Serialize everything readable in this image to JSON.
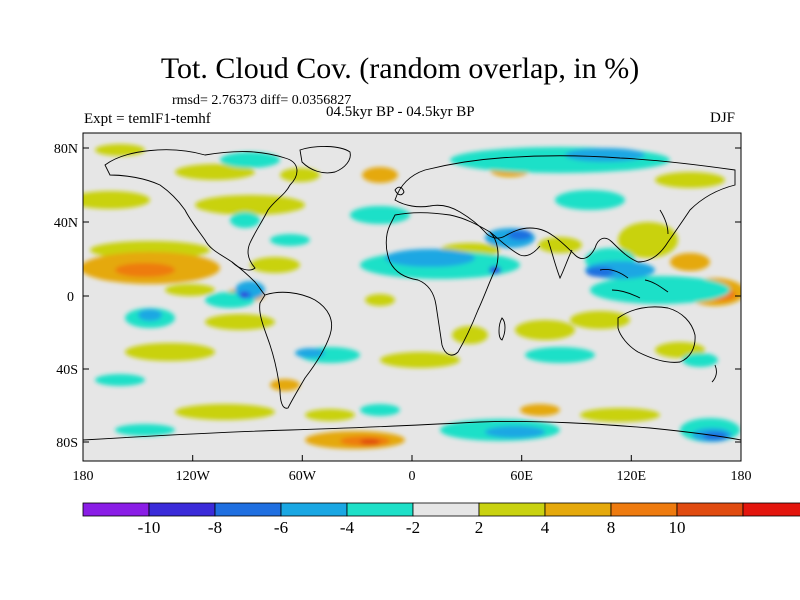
{
  "title": "Tot. Cloud Cov. (random overlap, in %)",
  "stats": "rmsd= 2.76373 diff= 0.0356827",
  "experiment": "Expt = temlF1-temhf",
  "period": "04.5kyr BP - 04.5kyr BP",
  "season": "DJF",
  "axes": {
    "lon_ticks": [
      "180",
      "120W",
      "60W",
      "0",
      "60E",
      "120E",
      "180"
    ],
    "lat_ticks": [
      "80N",
      "40N",
      "0",
      "40S",
      "80S"
    ]
  },
  "colorbar": {
    "colors": [
      "#8a1de6",
      "#3b2bd9",
      "#1f6fe0",
      "#1aa7e3",
      "#1ee0c8",
      "#e6e6e6",
      "#c9d210",
      "#e5a90c",
      "#ee7b0f",
      "#e04b10",
      "#e3150d"
    ],
    "labels": [
      "-10",
      "-8",
      "-6",
      "-4",
      "-2",
      "2",
      "4",
      "8",
      "10"
    ]
  }
}
